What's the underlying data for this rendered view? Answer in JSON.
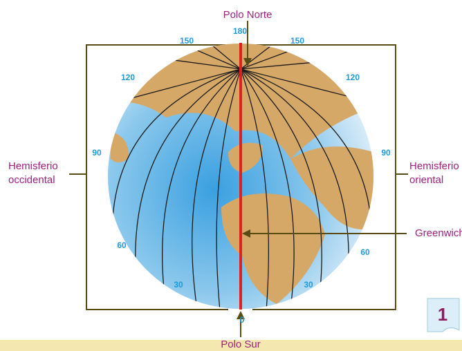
{
  "title_top": "Polo Norte",
  "title_bottom": "Polo Sur",
  "west": [
    "Hemisferio",
    "occidental"
  ],
  "east": [
    "Hemisferio",
    "oriental"
  ],
  "greenwich": "Greenwich",
  "longitudes": {
    "top": "180",
    "upper_left": "150",
    "upper_right": "150",
    "left_120": "120",
    "right_120": "120",
    "left_90": "90",
    "right_90": "90",
    "left_60": "60",
    "right_60": "60",
    "left_30": "30",
    "right_30": "30",
    "bottom": "0"
  },
  "page_number": "1"
}
